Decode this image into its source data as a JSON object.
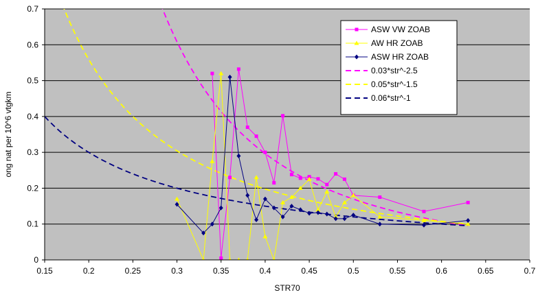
{
  "chart_data": {
    "type": "line",
    "xlabel": "STR70",
    "ylabel": "ong nat per 10^6 vtgkm",
    "xlim": [
      0.15,
      0.7
    ],
    "ylim": [
      0,
      0.7
    ],
    "x_ticks": [
      0.15,
      0.2,
      0.25,
      0.3,
      0.35,
      0.4,
      0.45,
      0.5,
      0.55,
      0.6,
      0.65,
      0.7
    ],
    "y_ticks": [
      0,
      0.1,
      0.2,
      0.3,
      0.4,
      0.5,
      0.6,
      0.7
    ],
    "x_tick_labels": [
      "0.15",
      "0.2",
      "0.25",
      "0.3",
      "0.35",
      "0.4",
      "0.45",
      "0.5",
      "0.55",
      "0.6",
      "0.65",
      "0.7"
    ],
    "y_tick_labels": [
      "0",
      "0.1",
      "0.2",
      "0.3",
      "0.4",
      "0.5",
      "0.6",
      "0.7"
    ],
    "grid": "horizontal",
    "plot_background": "#c0c0c0",
    "legend_position": "top-right",
    "series": [
      {
        "name": "ASW VW ZOAB",
        "kind": "markers-line",
        "marker": "square",
        "color": "#ff00ff",
        "points": [
          [
            0.34,
            0.52
          ],
          [
            0.35,
            0.005
          ],
          [
            0.36,
            0.23
          ],
          [
            0.37,
            0.532
          ],
          [
            0.38,
            0.37
          ],
          [
            0.39,
            0.345
          ],
          [
            0.4,
            0.3
          ],
          [
            0.41,
            0.215
          ],
          [
            0.42,
            0.402
          ],
          [
            0.43,
            0.238
          ],
          [
            0.44,
            0.228
          ],
          [
            0.45,
            0.232
          ],
          [
            0.46,
            0.226
          ],
          [
            0.47,
            0.21
          ],
          [
            0.48,
            0.24
          ],
          [
            0.49,
            0.225
          ],
          [
            0.5,
            0.18
          ],
          [
            0.53,
            0.175
          ],
          [
            0.58,
            0.135
          ],
          [
            0.63,
            0.16
          ]
        ]
      },
      {
        "name": "AW HR ZOAB",
        "kind": "markers-line",
        "marker": "triangle",
        "color": "#ffff00",
        "points": [
          [
            0.3,
            0.17
          ],
          [
            0.33,
            0.0
          ],
          [
            0.34,
            0.275
          ],
          [
            0.35,
            0.52
          ],
          [
            0.36,
            0.0
          ],
          [
            0.37,
            0.0
          ],
          [
            0.38,
            0.0
          ],
          [
            0.39,
            0.23
          ],
          [
            0.4,
            0.065
          ],
          [
            0.41,
            0.0
          ],
          [
            0.42,
            0.16
          ],
          [
            0.43,
            0.175
          ],
          [
            0.44,
            0.2
          ],
          [
            0.45,
            0.225
          ],
          [
            0.46,
            0.14
          ],
          [
            0.47,
            0.19
          ],
          [
            0.48,
            0.12
          ],
          [
            0.49,
            0.16
          ],
          [
            0.5,
            0.18
          ],
          [
            0.53,
            0.12
          ],
          [
            0.58,
            0.11
          ],
          [
            0.63,
            0.1
          ]
        ]
      },
      {
        "name": "ASW HR ZOAB",
        "kind": "markers-line",
        "marker": "diamond",
        "color": "#000080",
        "points": [
          [
            0.3,
            0.155
          ],
          [
            0.33,
            0.075
          ],
          [
            0.34,
            0.1
          ],
          [
            0.35,
            0.145
          ],
          [
            0.36,
            0.51
          ],
          [
            0.37,
            0.29
          ],
          [
            0.38,
            0.18
          ],
          [
            0.39,
            0.112
          ],
          [
            0.4,
            0.17
          ],
          [
            0.41,
            0.145
          ],
          [
            0.42,
            0.12
          ],
          [
            0.43,
            0.15
          ],
          [
            0.44,
            0.14
          ],
          [
            0.45,
            0.13
          ],
          [
            0.46,
            0.132
          ],
          [
            0.47,
            0.128
          ],
          [
            0.48,
            0.115
          ],
          [
            0.49,
            0.115
          ],
          [
            0.5,
            0.125
          ],
          [
            0.53,
            0.1
          ],
          [
            0.58,
            0.097
          ],
          [
            0.63,
            0.11
          ]
        ]
      },
      {
        "name": "0.03*str^-2.5",
        "kind": "dashed-curve",
        "color": "#ff00ff",
        "coefficient": 0.03,
        "exponent": -2.5,
        "x_range": [
          0.15,
          0.63
        ]
      },
      {
        "name": "0.05*str^-1.5",
        "kind": "dashed-curve",
        "color": "#ffff00",
        "coefficient": 0.05,
        "exponent": -1.5,
        "x_range": [
          0.15,
          0.63
        ]
      },
      {
        "name": "0.06*str^-1",
        "kind": "dashed-curve",
        "color": "#000080",
        "coefficient": 0.06,
        "exponent": -1,
        "x_range": [
          0.15,
          0.63
        ]
      }
    ]
  }
}
